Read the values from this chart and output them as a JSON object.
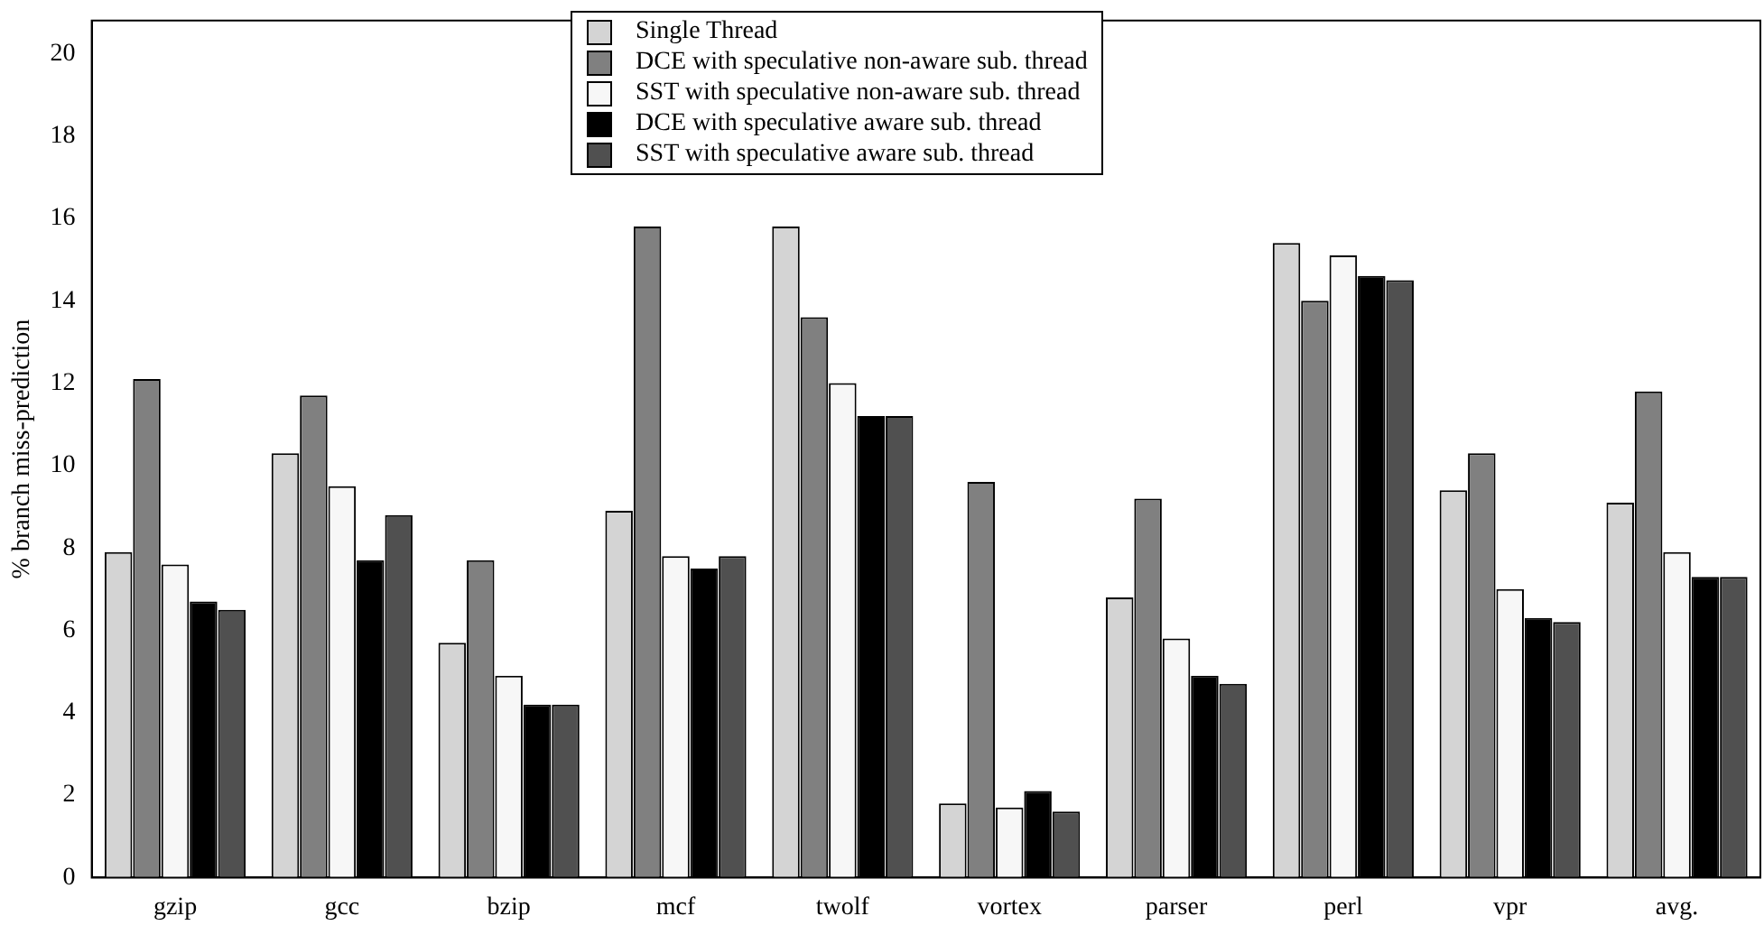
{
  "chart_data": {
    "type": "bar",
    "ylabel": "% branch miss-prediction",
    "categories": [
      "gzip",
      "gcc",
      "bzip",
      "mcf",
      "twolf",
      "vortex",
      "parser",
      "perl",
      "vpr",
      "avg."
    ],
    "series": [
      {
        "name": "Single Thread",
        "color": "#d4d4d4",
        "values": [
          7.9,
          10.3,
          5.7,
          8.9,
          15.8,
          1.8,
          6.8,
          15.4,
          9.4,
          9.1
        ]
      },
      {
        "name": "DCE with speculative non-aware sub. thread",
        "color": "#808080",
        "values": [
          12.1,
          11.7,
          7.7,
          15.8,
          13.6,
          9.6,
          9.2,
          14.0,
          10.3,
          11.8
        ]
      },
      {
        "name": "SST with speculative non-aware sub. thread",
        "color": "#f7f7f7",
        "values": [
          7.6,
          9.5,
          4.9,
          7.8,
          12.0,
          1.7,
          5.8,
          15.1,
          7.0,
          7.9
        ]
      },
      {
        "name": "DCE with speculative aware sub. thread",
        "color": "#000000",
        "values": [
          6.7,
          7.7,
          4.2,
          7.5,
          11.2,
          2.1,
          4.9,
          14.6,
          6.3,
          7.3
        ]
      },
      {
        "name": "SST with speculative aware sub. thread",
        "color": "#505050",
        "values": [
          6.5,
          8.8,
          4.2,
          7.8,
          11.2,
          1.6,
          4.7,
          14.5,
          6.2,
          7.3
        ]
      }
    ],
    "ylim": [
      0,
      20.8
    ],
    "yticks": [
      0,
      2,
      4,
      6,
      8,
      10,
      12,
      14,
      16,
      18,
      20
    ],
    "grid": false,
    "legend": "top"
  }
}
